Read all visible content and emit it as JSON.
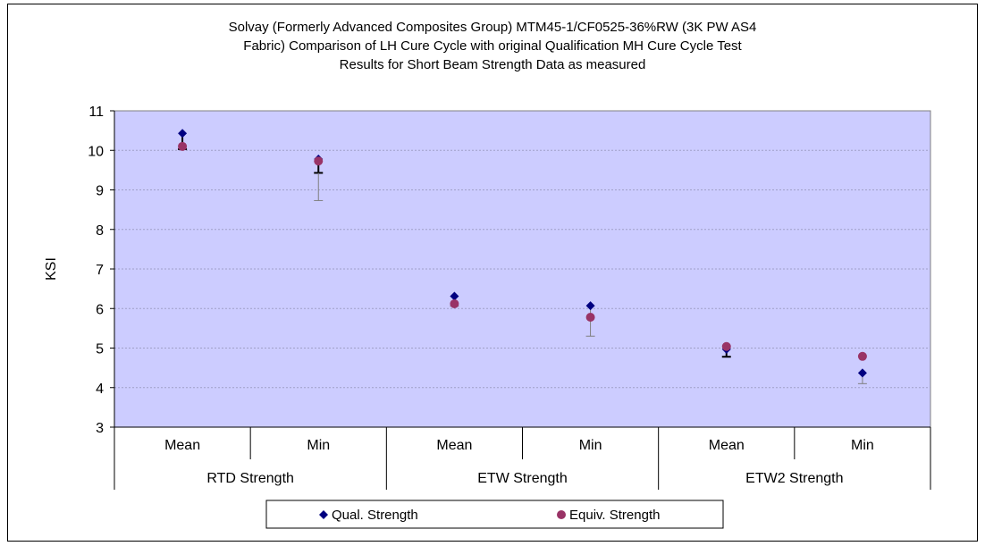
{
  "chart_data": {
    "type": "scatter",
    "title_lines": [
      "Solvay (Formerly Advanced Composites Group) MTM45-1/CF0525-36%RW (3K PW AS4",
      "Fabric) Comparison of LH Cure Cycle with original Qualification MH Cure Cycle Test",
      "Results for Short Beam Strength Data as measured"
    ],
    "ylabel": "KSI",
    "ylim": [
      3,
      11
    ],
    "yticks": [
      3,
      4,
      5,
      6,
      7,
      8,
      9,
      10,
      11
    ],
    "grid": true,
    "plot_background": "#ccccff",
    "categories": [
      "Mean",
      "Min",
      "Mean",
      "Min",
      "Mean",
      "Min"
    ],
    "groups": [
      {
        "label": "RTD Strength",
        "span": 2
      },
      {
        "label": "ETW Strength",
        "span": 2
      },
      {
        "label": "ETW2 Strength",
        "span": 2
      }
    ],
    "series": [
      {
        "name": "Qual. Strength",
        "marker": "diamond",
        "color": "#000080",
        "values": [
          10.43,
          9.78,
          6.31,
          6.07,
          4.97,
          4.37
        ]
      },
      {
        "name": "Equiv. Strength",
        "marker": "circle",
        "color": "#993366",
        "values": [
          10.1,
          9.73,
          6.12,
          5.78,
          5.04,
          4.79
        ]
      }
    ],
    "error_bars": [
      {
        "category_index": 0,
        "low": 10.03,
        "high": 10.43,
        "style": "thick"
      },
      {
        "category_index": 1,
        "low": 9.43,
        "high": 9.78,
        "style": "thick"
      },
      {
        "category_index": 1,
        "low": 8.73,
        "high": 9.43,
        "style": "thin"
      },
      {
        "category_index": 2,
        "low": 6.06,
        "high": 6.31,
        "style": "thin"
      },
      {
        "category_index": 3,
        "low": 5.3,
        "high": 6.07,
        "style": "thin"
      },
      {
        "category_index": 4,
        "low": 4.78,
        "high": 4.97,
        "style": "thick"
      },
      {
        "category_index": 5,
        "low": 4.1,
        "high": 4.37,
        "style": "thin"
      }
    ],
    "legend_position": "bottom"
  }
}
